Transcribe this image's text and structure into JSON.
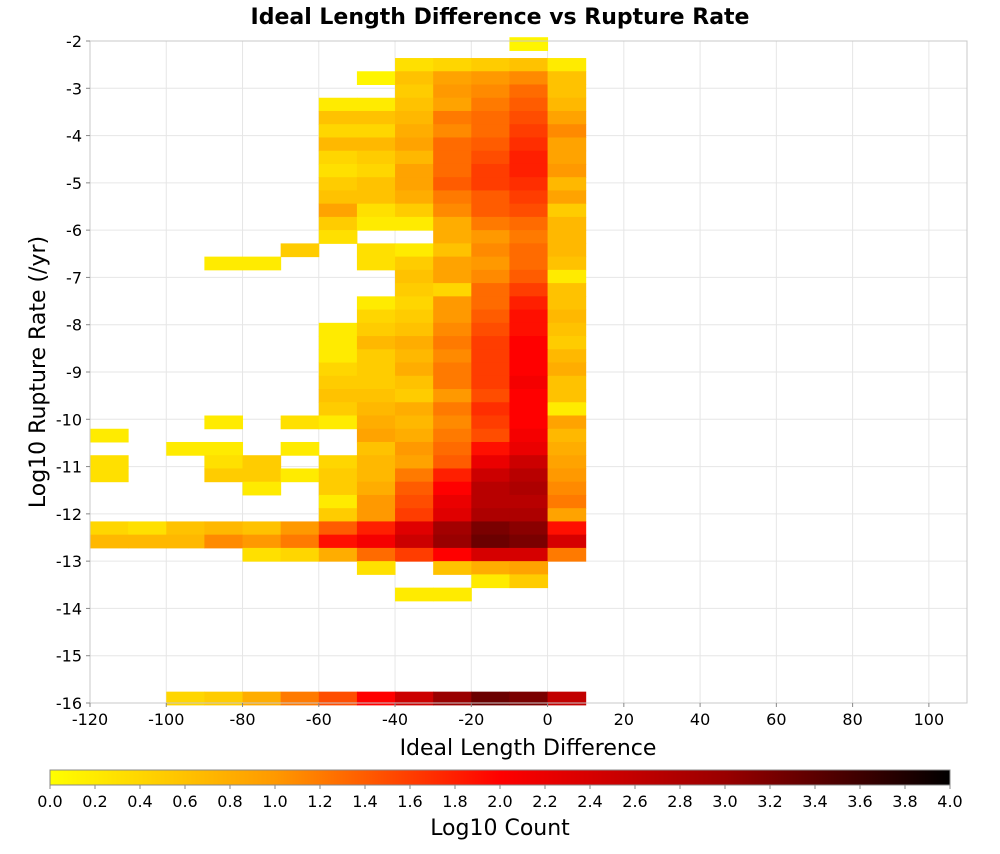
{
  "chart_data": {
    "type": "heatmap",
    "title": "Ideal Length Difference vs Rupture Rate",
    "xlabel": "Ideal Length Difference",
    "ylabel": "Log10 Rupture Rate (/yr)",
    "colorbar_label": "Log10 Count",
    "xlim": [
      -120,
      110
    ],
    "ylim": [
      -16,
      -2
    ],
    "x_ticks": [
      -120,
      -100,
      -80,
      -60,
      -40,
      -20,
      0,
      20,
      40,
      60,
      80,
      100
    ],
    "x_tick_labels": [
      "-120",
      "-100",
      "-80",
      "-60",
      "-40",
      "-20",
      "0",
      "20",
      "40",
      "60",
      "80",
      "100"
    ],
    "y_ticks": [
      -16,
      -15,
      -14,
      -13,
      -12,
      -11,
      -10,
      -9,
      -8,
      -7,
      -6,
      -5,
      -4,
      -3,
      -2
    ],
    "y_tick_labels": [
      "-16",
      "-15",
      "-14",
      "-13",
      "-12",
      "-11",
      "-10",
      "-9",
      "-8",
      "-7",
      "-6",
      "-5",
      "-4",
      "-3",
      "-2"
    ],
    "colorbar_range": [
      0.0,
      4.0
    ],
    "colorbar_ticks": [
      "0.0",
      "0.2",
      "0.4",
      "0.6",
      "0.8",
      "1.0",
      "1.2",
      "1.4",
      "1.6",
      "1.8",
      "2.0",
      "2.2",
      "2.4",
      "2.6",
      "2.8",
      "3.0",
      "3.2",
      "3.4",
      "3.6",
      "3.8",
      "4.0"
    ],
    "colormap": [
      "#ffff00",
      "#ff9900",
      "#ff0000",
      "#990000",
      "#000000"
    ],
    "grid": true,
    "x_bin_width": 10,
    "y_bin_height": 0.28,
    "cells": [
      [
        -5,
        -2.06,
        0.1
      ],
      [
        -35,
        -2.5,
        0.3
      ],
      [
        -25,
        -2.5,
        0.4
      ],
      [
        -15,
        -2.5,
        0.5
      ],
      [
        -5,
        -2.5,
        0.6
      ],
      [
        5,
        -2.5,
        0.2
      ],
      [
        -45,
        -2.78,
        0.1
      ],
      [
        -35,
        -2.78,
        0.6
      ],
      [
        -25,
        -2.78,
        0.9
      ],
      [
        -15,
        -2.78,
        1.0
      ],
      [
        -5,
        -2.78,
        1.1
      ],
      [
        5,
        -2.78,
        0.6
      ],
      [
        -35,
        -3.06,
        0.5
      ],
      [
        -25,
        -3.06,
        1.0
      ],
      [
        -15,
        -3.06,
        1.1
      ],
      [
        -5,
        -3.06,
        1.3
      ],
      [
        5,
        -3.06,
        0.6
      ],
      [
        -55,
        -3.34,
        0.2
      ],
      [
        -45,
        -3.34,
        0.2
      ],
      [
        -35,
        -3.34,
        0.6
      ],
      [
        -25,
        -3.34,
        0.9
      ],
      [
        -15,
        -3.34,
        1.2
      ],
      [
        -5,
        -3.34,
        1.4
      ],
      [
        5,
        -3.34,
        0.7
      ],
      [
        -55,
        -3.62,
        0.6
      ],
      [
        -45,
        -3.62,
        0.6
      ],
      [
        -35,
        -3.62,
        0.7
      ],
      [
        -25,
        -3.62,
        1.2
      ],
      [
        -15,
        -3.62,
        1.3
      ],
      [
        -5,
        -3.62,
        1.5
      ],
      [
        5,
        -3.62,
        0.9
      ],
      [
        -55,
        -3.9,
        0.4
      ],
      [
        -45,
        -3.9,
        0.4
      ],
      [
        -35,
        -3.9,
        0.8
      ],
      [
        -25,
        -3.9,
        1.1
      ],
      [
        -15,
        -3.9,
        1.3
      ],
      [
        -5,
        -3.9,
        1.6
      ],
      [
        5,
        -3.9,
        1.1
      ],
      [
        -55,
        -4.18,
        0.7
      ],
      [
        -45,
        -4.18,
        0.7
      ],
      [
        -35,
        -4.18,
        0.9
      ],
      [
        -25,
        -4.18,
        1.3
      ],
      [
        -15,
        -4.18,
        1.4
      ],
      [
        -5,
        -4.18,
        1.7
      ],
      [
        5,
        -4.18,
        0.9
      ],
      [
        -55,
        -4.46,
        0.4
      ],
      [
        -45,
        -4.46,
        0.5
      ],
      [
        -35,
        -4.46,
        0.7
      ],
      [
        -25,
        -4.46,
        1.3
      ],
      [
        -15,
        -4.46,
        1.5
      ],
      [
        -5,
        -4.46,
        1.8
      ],
      [
        5,
        -4.46,
        0.9
      ],
      [
        -55,
        -4.74,
        0.3
      ],
      [
        -45,
        -4.74,
        0.4
      ],
      [
        -35,
        -4.74,
        0.9
      ],
      [
        -25,
        -4.74,
        1.3
      ],
      [
        -15,
        -4.74,
        1.6
      ],
      [
        -5,
        -4.74,
        1.8
      ],
      [
        5,
        -4.74,
        1.0
      ],
      [
        -55,
        -5.02,
        0.5
      ],
      [
        -45,
        -5.02,
        0.6
      ],
      [
        -35,
        -5.02,
        0.9
      ],
      [
        -25,
        -5.02,
        1.4
      ],
      [
        -15,
        -5.02,
        1.6
      ],
      [
        -5,
        -5.02,
        1.7
      ],
      [
        5,
        -5.02,
        0.7
      ],
      [
        -55,
        -5.3,
        0.6
      ],
      [
        -45,
        -5.3,
        0.6
      ],
      [
        -35,
        -5.3,
        0.8
      ],
      [
        -25,
        -5.3,
        1.2
      ],
      [
        -15,
        -5.3,
        1.4
      ],
      [
        -5,
        -5.3,
        1.6
      ],
      [
        5,
        -5.3,
        0.9
      ],
      [
        -55,
        -5.58,
        0.9
      ],
      [
        -45,
        -5.58,
        0.3
      ],
      [
        -35,
        -5.58,
        0.5
      ],
      [
        -25,
        -5.58,
        1.1
      ],
      [
        -15,
        -5.58,
        1.4
      ],
      [
        -5,
        -5.58,
        1.5
      ],
      [
        5,
        -5.58,
        0.5
      ],
      [
        -55,
        -5.86,
        0.5
      ],
      [
        -45,
        -5.86,
        0.2
      ],
      [
        -35,
        -5.86,
        0.2
      ],
      [
        -25,
        -5.86,
        0.8
      ],
      [
        -15,
        -5.86,
        1.2
      ],
      [
        -5,
        -5.86,
        1.3
      ],
      [
        5,
        -5.86,
        0.7
      ],
      [
        -55,
        -6.14,
        0.3
      ],
      [
        -25,
        -6.14,
        0.8
      ],
      [
        -15,
        -6.14,
        1.0
      ],
      [
        -5,
        -6.14,
        1.2
      ],
      [
        5,
        -6.14,
        0.7
      ],
      [
        -65,
        -6.42,
        0.5
      ],
      [
        -45,
        -6.42,
        0.3
      ],
      [
        -35,
        -6.42,
        0.2
      ],
      [
        -25,
        -6.42,
        0.6
      ],
      [
        -15,
        -6.42,
        1.1
      ],
      [
        -5,
        -6.42,
        1.3
      ],
      [
        5,
        -6.42,
        0.7
      ],
      [
        -85,
        -6.7,
        0.2
      ],
      [
        -75,
        -6.7,
        0.2
      ],
      [
        -45,
        -6.7,
        0.3
      ],
      [
        -35,
        -6.7,
        0.5
      ],
      [
        -25,
        -6.7,
        0.9
      ],
      [
        -15,
        -6.7,
        1.0
      ],
      [
        -5,
        -6.7,
        1.3
      ],
      [
        5,
        -6.7,
        0.6
      ],
      [
        -35,
        -6.98,
        0.6
      ],
      [
        -25,
        -6.98,
        0.9
      ],
      [
        -15,
        -6.98,
        1.1
      ],
      [
        -5,
        -6.98,
        1.4
      ],
      [
        5,
        -6.98,
        0.2
      ],
      [
        -35,
        -7.26,
        0.5
      ],
      [
        -25,
        -7.26,
        0.4
      ],
      [
        -15,
        -7.26,
        1.3
      ],
      [
        -5,
        -7.26,
        1.6
      ],
      [
        5,
        -7.26,
        0.6
      ],
      [
        -45,
        -7.54,
        0.2
      ],
      [
        -35,
        -7.54,
        0.4
      ],
      [
        -25,
        -7.54,
        1.0
      ],
      [
        -15,
        -7.54,
        1.3
      ],
      [
        -5,
        -7.54,
        1.8
      ],
      [
        5,
        -7.54,
        0.6
      ],
      [
        -45,
        -7.82,
        0.4
      ],
      [
        -35,
        -7.82,
        0.5
      ],
      [
        -25,
        -7.82,
        1.0
      ],
      [
        -15,
        -7.82,
        1.4
      ],
      [
        -5,
        -7.82,
        1.9
      ],
      [
        5,
        -7.82,
        0.7
      ],
      [
        -55,
        -8.1,
        0.2
      ],
      [
        -45,
        -8.1,
        0.5
      ],
      [
        -35,
        -8.1,
        0.6
      ],
      [
        -25,
        -8.1,
        1.1
      ],
      [
        -15,
        -8.1,
        1.5
      ],
      [
        -5,
        -8.1,
        1.9
      ],
      [
        5,
        -8.1,
        0.6
      ],
      [
        -55,
        -8.38,
        0.2
      ],
      [
        -45,
        -8.38,
        0.7
      ],
      [
        -35,
        -8.38,
        0.8
      ],
      [
        -25,
        -8.38,
        1.2
      ],
      [
        -15,
        -8.38,
        1.6
      ],
      [
        -5,
        -8.38,
        2.0
      ],
      [
        5,
        -8.38,
        0.5
      ],
      [
        -55,
        -8.66,
        0.2
      ],
      [
        -45,
        -8.66,
        0.5
      ],
      [
        -35,
        -8.66,
        0.7
      ],
      [
        -25,
        -8.66,
        1.1
      ],
      [
        -15,
        -8.66,
        1.6
      ],
      [
        -5,
        -8.66,
        2.0
      ],
      [
        5,
        -8.66,
        0.7
      ],
      [
        -55,
        -8.94,
        0.4
      ],
      [
        -45,
        -8.94,
        0.5
      ],
      [
        -35,
        -8.94,
        0.8
      ],
      [
        -25,
        -8.94,
        1.2
      ],
      [
        -15,
        -8.94,
        1.6
      ],
      [
        -5,
        -8.94,
        2.0
      ],
      [
        5,
        -8.94,
        0.8
      ],
      [
        -55,
        -9.22,
        0.5
      ],
      [
        -45,
        -9.22,
        0.5
      ],
      [
        -35,
        -9.22,
        0.6
      ],
      [
        -25,
        -9.22,
        1.2
      ],
      [
        -15,
        -9.22,
        1.6
      ],
      [
        -5,
        -9.22,
        2.1
      ],
      [
        5,
        -9.22,
        0.6
      ],
      [
        -55,
        -9.5,
        0.6
      ],
      [
        -45,
        -9.5,
        0.6
      ],
      [
        -35,
        -9.5,
        0.5
      ],
      [
        -25,
        -9.5,
        1.0
      ],
      [
        -15,
        -9.5,
        1.5
      ],
      [
        -5,
        -9.5,
        2.0
      ],
      [
        5,
        -9.5,
        0.6
      ],
      [
        -55,
        -9.78,
        0.5
      ],
      [
        -45,
        -9.78,
        0.7
      ],
      [
        -35,
        -9.78,
        0.8
      ],
      [
        -25,
        -9.78,
        1.2
      ],
      [
        -15,
        -9.78,
        1.7
      ],
      [
        -5,
        -9.78,
        2.0
      ],
      [
        5,
        -9.78,
        0.2
      ],
      [
        -85,
        -10.06,
        0.2
      ],
      [
        -65,
        -10.06,
        0.3
      ],
      [
        -55,
        -10.06,
        0.2
      ],
      [
        -45,
        -10.06,
        0.8
      ],
      [
        -35,
        -10.06,
        0.7
      ],
      [
        -25,
        -10.06,
        1.1
      ],
      [
        -15,
        -10.06,
        1.6
      ],
      [
        -5,
        -10.06,
        2.0
      ],
      [
        5,
        -10.06,
        0.9
      ],
      [
        -115,
        -10.34,
        0.2
      ],
      [
        -45,
        -10.34,
        0.9
      ],
      [
        -35,
        -10.34,
        0.8
      ],
      [
        -25,
        -10.34,
        1.2
      ],
      [
        -15,
        -10.34,
        1.5
      ],
      [
        -5,
        -10.34,
        2.1
      ],
      [
        5,
        -10.34,
        0.7
      ],
      [
        -95,
        -10.62,
        0.2
      ],
      [
        -85,
        -10.62,
        0.2
      ],
      [
        -65,
        -10.62,
        0.2
      ],
      [
        -45,
        -10.62,
        0.6
      ],
      [
        -35,
        -10.62,
        1.0
      ],
      [
        -25,
        -10.62,
        1.3
      ],
      [
        -15,
        -10.62,
        1.9
      ],
      [
        -5,
        -10.62,
        2.2
      ],
      [
        5,
        -10.62,
        0.8
      ],
      [
        -115,
        -10.9,
        0.3
      ],
      [
        -85,
        -10.9,
        0.3
      ],
      [
        -75,
        -10.9,
        0.5
      ],
      [
        -55,
        -10.9,
        0.4
      ],
      [
        -45,
        -10.9,
        0.7
      ],
      [
        -35,
        -10.9,
        0.9
      ],
      [
        -25,
        -10.9,
        1.4
      ],
      [
        -15,
        -10.9,
        2.2
      ],
      [
        -5,
        -10.9,
        2.5
      ],
      [
        5,
        -10.9,
        0.9
      ],
      [
        -115,
        -11.18,
        0.3
      ],
      [
        -85,
        -11.18,
        0.5
      ],
      [
        -75,
        -11.18,
        0.5
      ],
      [
        -65,
        -11.18,
        0.2
      ],
      [
        -55,
        -11.18,
        0.5
      ],
      [
        -45,
        -11.18,
        0.7
      ],
      [
        -35,
        -11.18,
        1.2
      ],
      [
        -25,
        -11.18,
        1.8
      ],
      [
        -15,
        -11.18,
        2.5
      ],
      [
        -5,
        -11.18,
        2.7
      ],
      [
        5,
        -11.18,
        1.0
      ],
      [
        -75,
        -11.46,
        0.2
      ],
      [
        -55,
        -11.46,
        0.5
      ],
      [
        -45,
        -11.46,
        0.8
      ],
      [
        -35,
        -11.46,
        1.4
      ],
      [
        -25,
        -11.46,
        2.0
      ],
      [
        -15,
        -11.46,
        2.7
      ],
      [
        -5,
        -11.46,
        2.8
      ],
      [
        5,
        -11.46,
        1.1
      ],
      [
        -55,
        -11.74,
        0.2
      ],
      [
        -45,
        -11.74,
        1.0
      ],
      [
        -35,
        -11.74,
        1.5
      ],
      [
        -25,
        -11.74,
        2.2
      ],
      [
        -15,
        -11.74,
        2.7
      ],
      [
        -5,
        -11.74,
        2.7
      ],
      [
        5,
        -11.74,
        1.2
      ],
      [
        -55,
        -12.02,
        0.5
      ],
      [
        -45,
        -12.02,
        1.0
      ],
      [
        -35,
        -12.02,
        1.6
      ],
      [
        -25,
        -12.02,
        2.3
      ],
      [
        -15,
        -12.02,
        2.8
      ],
      [
        -5,
        -12.02,
        2.8
      ],
      [
        5,
        -12.02,
        0.9
      ],
      [
        -115,
        -12.3,
        0.4
      ],
      [
        -105,
        -12.3,
        0.3
      ],
      [
        -95,
        -12.3,
        0.6
      ],
      [
        -85,
        -12.3,
        0.7
      ],
      [
        -75,
        -12.3,
        0.6
      ],
      [
        -65,
        -12.3,
        1.0
      ],
      [
        -55,
        -12.3,
        1.4
      ],
      [
        -45,
        -12.3,
        1.8
      ],
      [
        -35,
        -12.3,
        2.3
      ],
      [
        -25,
        -12.3,
        2.9
      ],
      [
        -15,
        -12.3,
        3.2
      ],
      [
        -5,
        -12.3,
        3.1
      ],
      [
        5,
        -12.3,
        1.9
      ],
      [
        -115,
        -12.58,
        0.7
      ],
      [
        -105,
        -12.58,
        0.7
      ],
      [
        -95,
        -12.58,
        0.7
      ],
      [
        -85,
        -12.58,
        1.1
      ],
      [
        -75,
        -12.58,
        1.0
      ],
      [
        -65,
        -12.58,
        1.2
      ],
      [
        -55,
        -12.58,
        1.9
      ],
      [
        -45,
        -12.58,
        2.1
      ],
      [
        -35,
        -12.58,
        2.5
      ],
      [
        -25,
        -12.58,
        3.0
      ],
      [
        -15,
        -12.58,
        3.3
      ],
      [
        -5,
        -12.58,
        3.2
      ],
      [
        5,
        -12.58,
        2.4
      ],
      [
        -75,
        -12.86,
        0.3
      ],
      [
        -65,
        -12.86,
        0.4
      ],
      [
        -55,
        -12.86,
        0.8
      ],
      [
        -45,
        -12.86,
        1.3
      ],
      [
        -35,
        -12.86,
        1.6
      ],
      [
        -25,
        -12.86,
        2.0
      ],
      [
        -15,
        -12.86,
        2.4
      ],
      [
        -5,
        -12.86,
        2.4
      ],
      [
        5,
        -12.86,
        1.2
      ],
      [
        -45,
        -13.14,
        0.3
      ],
      [
        -25,
        -13.14,
        0.6
      ],
      [
        -15,
        -13.14,
        0.8
      ],
      [
        -5,
        -13.14,
        0.9
      ],
      [
        -15,
        -13.42,
        0.2
      ],
      [
        -5,
        -13.42,
        0.5
      ],
      [
        -35,
        -13.7,
        0.2
      ],
      [
        -25,
        -13.7,
        0.2
      ],
      [
        -95,
        -15.9,
        0.4
      ],
      [
        -85,
        -15.9,
        0.5
      ],
      [
        -75,
        -15.9,
        0.8
      ],
      [
        -65,
        -15.9,
        1.2
      ],
      [
        -55,
        -15.9,
        1.5
      ],
      [
        -45,
        -15.9,
        2.0
      ],
      [
        -35,
        -15.9,
        2.5
      ],
      [
        -25,
        -15.9,
        3.0
      ],
      [
        -15,
        -15.9,
        3.3
      ],
      [
        -5,
        -15.9,
        3.2
      ],
      [
        5,
        -15.9,
        2.6
      ]
    ]
  }
}
